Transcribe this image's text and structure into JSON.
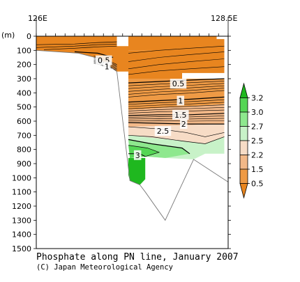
{
  "chart_data": {
    "type": "contour-section",
    "title": "Phosphate along PN line, January 2007",
    "credit": "(C) Japan Meteorological Agency",
    "x_labels": [
      "126E",
      "128.5E"
    ],
    "xlim": [
      126,
      128.5
    ],
    "y_unit": "(m)",
    "y_ticks": [
      0,
      100,
      200,
      300,
      400,
      500,
      600,
      700,
      800,
      900,
      1000,
      1100,
      1200,
      1300,
      1400,
      1500
    ],
    "ylim": [
      0,
      1500
    ],
    "colorbar_labels": [
      "3.2",
      "3.0",
      "2.7",
      "2.5",
      "2.2",
      "1.5",
      "0.5"
    ],
    "colorbar_colors": [
      "#1fb81f",
      "#55d655",
      "#8ee88e",
      "#c8f2c8",
      "#f7dcc6",
      "#f2b888",
      "#ee9a45",
      "#e8851f"
    ],
    "contour_labels": [
      {
        "text": "0.5",
        "lon": 126.88,
        "depth": 170
      },
      {
        "text": "1",
        "lon": 126.92,
        "depth": 215
      },
      {
        "text": "0.5",
        "lon": 127.85,
        "depth": 335
      },
      {
        "text": "1",
        "lon": 127.88,
        "depth": 455
      },
      {
        "text": "1.5",
        "lon": 127.88,
        "depth": 555
      },
      {
        "text": "2",
        "lon": 127.92,
        "depth": 620
      },
      {
        "text": "2.5",
        "lon": 127.65,
        "depth": 670
      },
      {
        "text": "3",
        "lon": 127.32,
        "depth": 840
      }
    ],
    "bottom_profile": [
      {
        "lon": 126.0,
        "depth": 100
      },
      {
        "lon": 126.55,
        "depth": 120
      },
      {
        "lon": 126.8,
        "depth": 155
      },
      {
        "lon": 127.05,
        "depth": 250
      },
      {
        "lon": 127.22,
        "depth": 1020
      },
      {
        "lon": 127.35,
        "depth": 1050
      },
      {
        "lon": 127.42,
        "depth": 1100
      },
      {
        "lon": 127.68,
        "depth": 1300
      },
      {
        "lon": 128.05,
        "depth": 870
      },
      {
        "lon": 128.5,
        "depth": 1030
      }
    ]
  }
}
